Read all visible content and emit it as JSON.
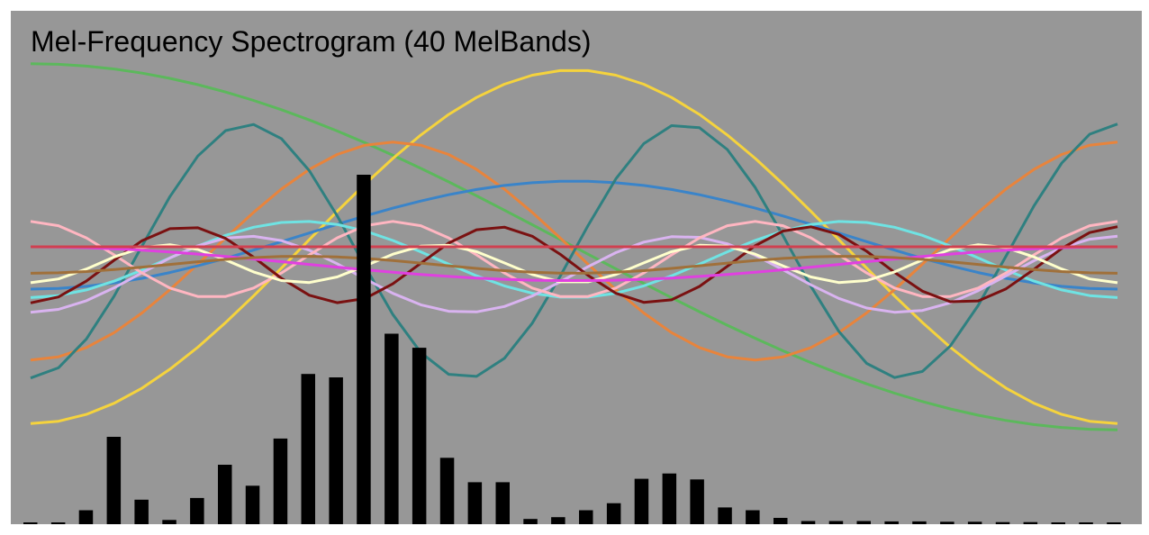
{
  "chart_data": {
    "type": "bar",
    "title": "Mel-Frequency Spectrogram (40 MelBands)",
    "xlabel": "",
    "ylabel": "",
    "ylim": [
      0,
      1
    ],
    "grid": false,
    "legend": "none",
    "bar_color": "#000000",
    "background_color": "#979797",
    "values": [
      0.005,
      0.005,
      0.04,
      0.25,
      0.07,
      0.012,
      0.075,
      0.17,
      0.11,
      0.245,
      0.43,
      0.42,
      1.0,
      0.545,
      0.505,
      0.19,
      0.12,
      0.12,
      0.015,
      0.02,
      0.04,
      0.06,
      0.13,
      0.145,
      0.128,
      0.048,
      0.04,
      0.018,
      0.009,
      0.009,
      0.009,
      0.008,
      0.008,
      0.007,
      0.007,
      0.006,
      0.006,
      0.005,
      0.005,
      0.005
    ],
    "curves": {
      "x_range": [
        0,
        1
      ],
      "y_range": [
        -1,
        1
      ],
      "series": [
        {
          "color": "#5cb85c",
          "kind": "cos",
          "cycles": 0.5,
          "amplitude": 0.865,
          "offset": 0.0,
          "phase": 0.0
        },
        {
          "color": "#f5d33d",
          "kind": "sin",
          "cycles": 1.0,
          "amplitude": 0.835,
          "offset": 0.0,
          "phase": 0.0,
          "shape": "hump"
        },
        {
          "color": "#e8843c",
          "kind": "cos",
          "cycles": 1.5,
          "amplitude": 0.515,
          "offset": -0.02,
          "phase": 3.1416
        },
        {
          "color": "#3a84c9",
          "kind": "cos",
          "cycles": 1.0,
          "amplitude": 0.255,
          "offset": 0.055,
          "phase": 3.1416
        },
        {
          "color": "#2f8080",
          "kind": "cos",
          "cycles": 2.5,
          "amplitude": 0.6,
          "offset": -0.02,
          "phase": 3.1416
        },
        {
          "color": "#6fe3e3",
          "kind": "cos",
          "cycles": 2.0,
          "amplitude": 0.18,
          "offset": -0.06,
          "phase": 3.1416
        },
        {
          "color": "#d9b3f0",
          "kind": "cos",
          "cycles": 2.5,
          "amplitude": 0.18,
          "offset": -0.13,
          "phase": 3.1416
        },
        {
          "color": "#ffb6c1",
          "kind": "cos",
          "cycles": 3.0,
          "amplitude": 0.18,
          "offset": -0.06,
          "phase": 0.0
        },
        {
          "color": "#7a1111",
          "kind": "cos",
          "cycles": 3.5,
          "amplitude": 0.18,
          "offset": -0.085,
          "phase": 3.1416
        },
        {
          "color": "#ffffcc",
          "kind": "cos",
          "cycles": 4.0,
          "amplitude": 0.09,
          "offset": -0.08,
          "phase": 3.1416
        },
        {
          "color": "#e040e0",
          "kind": "cos",
          "cycles": 1.0,
          "amplitude": 0.08,
          "offset": -0.08,
          "phase": 0.0
        },
        {
          "color": "#a0703a",
          "kind": "cos",
          "cycles": 2.0,
          "amplitude": 0.04,
          "offset": -0.085,
          "phase": 3.1416
        },
        {
          "color": "#d04050",
          "kind": "flat",
          "cycles": 0,
          "amplitude": 0.0,
          "offset": 0.0,
          "phase": 0.0
        }
      ]
    }
  }
}
